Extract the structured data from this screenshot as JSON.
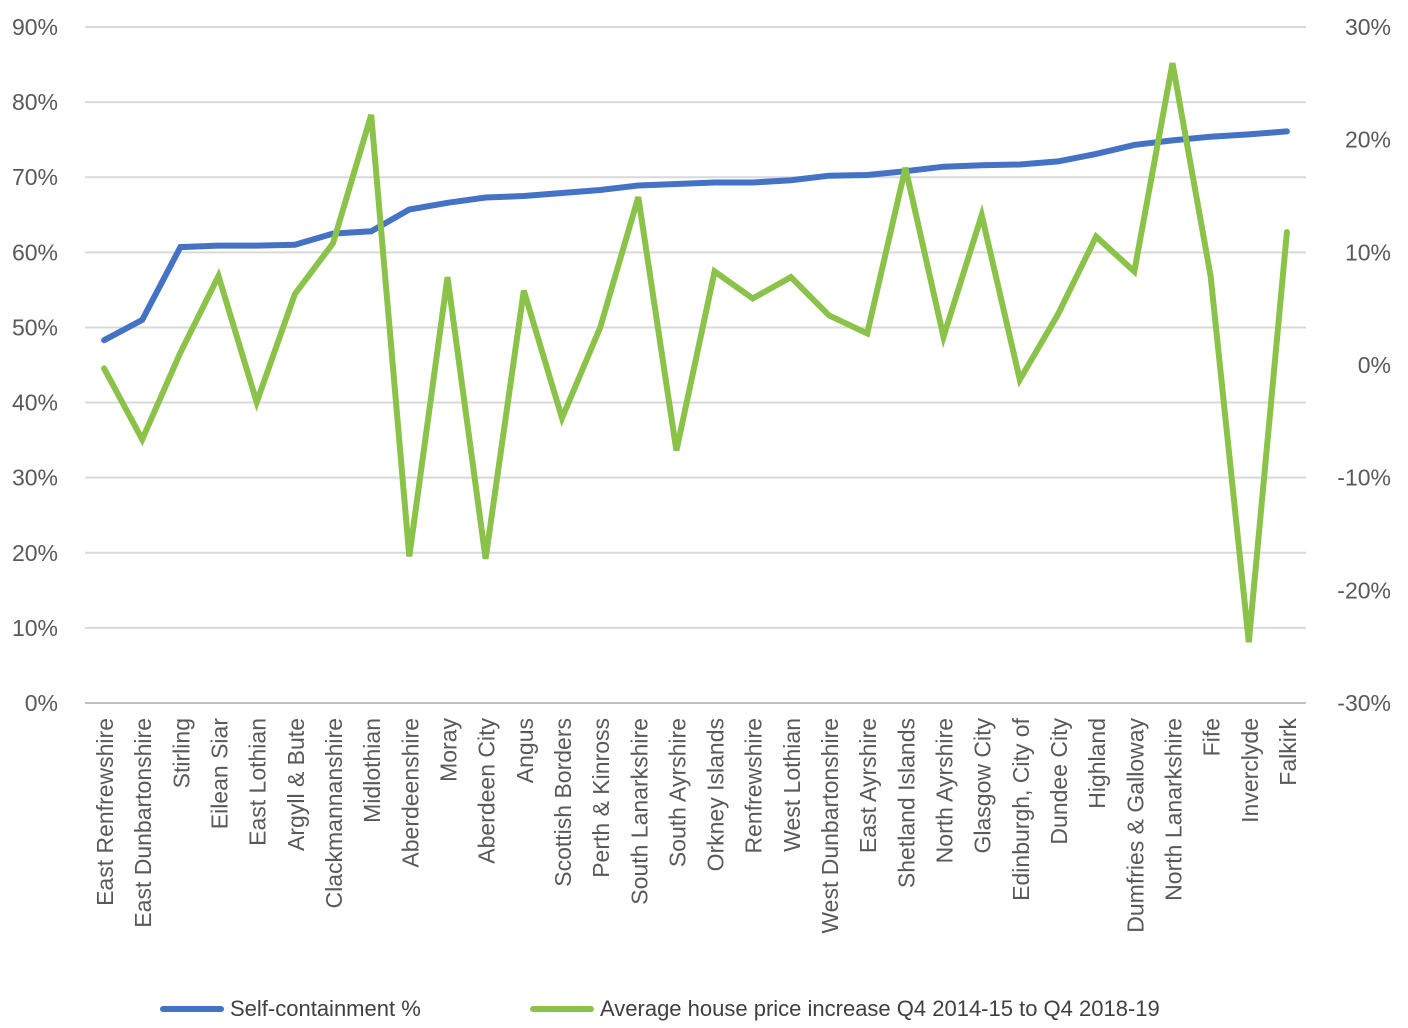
{
  "chart_data": {
    "type": "line",
    "categories": [
      "East Renfrewshire",
      "East Dunbartonshire",
      "Stirling",
      "Eilean Siar",
      "East Lothian",
      "Argyll & Bute",
      "Clackmannanshire",
      "Midlothian",
      "Aberdeenshire",
      "Moray",
      "Aberdeen City",
      "Angus",
      "Scottish Borders",
      "Perth & Kinross",
      "South Lanarkshire",
      "South Ayrshire",
      "Orkney Islands",
      "Renfrewshire",
      "West Lothian",
      "West Dunbartonshire",
      "East Ayrshire",
      "Shetland Islands",
      "North Ayrshire",
      "Glasgow City",
      "Edinburgh, City of",
      "Dundee City",
      "Highland",
      "Dumfries & Galloway",
      "North Lanarkshire",
      "Fife",
      "Inverclyde",
      "Falkirk"
    ],
    "series": [
      {
        "name": "Self-containment %",
        "axis": "left",
        "color": "#4472C4",
        "values": [
          48.3,
          51.0,
          60.7,
          60.9,
          60.9,
          61.0,
          62.5,
          62.8,
          65.7,
          66.6,
          67.3,
          67.5,
          67.9,
          68.3,
          68.9,
          69.1,
          69.3,
          69.3,
          69.6,
          70.2,
          70.3,
          70.8,
          71.4,
          71.6,
          71.7,
          72.1,
          73.1,
          74.3,
          74.9,
          75.4,
          75.7,
          76.1
        ]
      },
      {
        "name": "Average house price increase Q4 2014-15 to Q4 2018-19",
        "axis": "right",
        "color": "#8BC34A",
        "values": [
          -0.3,
          -6.6,
          1.1,
          7.9,
          -3.3,
          6.3,
          10.8,
          22.2,
          -17.0,
          7.8,
          -17.2,
          6.6,
          -4.7,
          3.3,
          14.9,
          -7.6,
          8.3,
          5.9,
          7.8,
          4.4,
          2.8,
          17.5,
          2.5,
          13.3,
          -1.3,
          4.5,
          11.4,
          8.3,
          26.8,
          7.9,
          -24.6,
          11.8
        ]
      }
    ],
    "y_left": {
      "ylim": [
        0,
        90
      ],
      "ticks": [
        "0%",
        "10%",
        "20%",
        "30%",
        "40%",
        "50%",
        "60%",
        "70%",
        "80%",
        "90%"
      ]
    },
    "y_right": {
      "ylim": [
        -30,
        30
      ],
      "ticks": [
        "-30%",
        "-20%",
        "-10%",
        "0%",
        "10%",
        "20%",
        "30%"
      ]
    },
    "grid": true,
    "legend_position": "bottom"
  }
}
